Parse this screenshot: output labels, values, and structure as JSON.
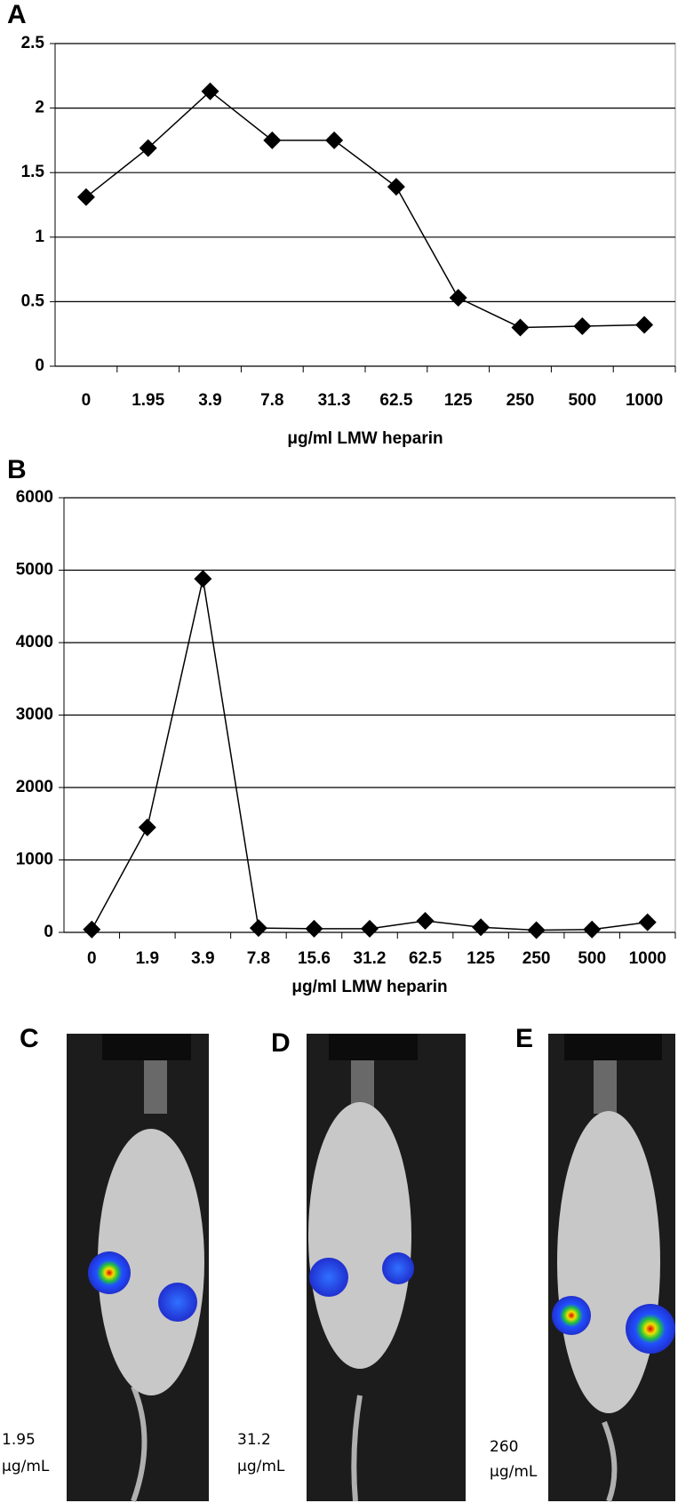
{
  "chart_data": [
    {
      "type": "line",
      "label": "A",
      "x_label": "μg/ml LMW heparin",
      "categories": [
        "0",
        "1.95",
        "3.9",
        "7.8",
        "31.3",
        "62.5",
        "125",
        "250",
        "500",
        "1000"
      ],
      "values": [
        1.31,
        1.69,
        2.13,
        1.75,
        1.75,
        1.39,
        0.53,
        0.3,
        0.31,
        0.32
      ],
      "color": "#000000",
      "ylim": [
        0,
        2.5
      ],
      "yticks": [
        0,
        0.5,
        1,
        1.5,
        2,
        2.5
      ],
      "grid": true
    },
    {
      "type": "line",
      "label": "B",
      "x_label": "μg/ml LMW heparin",
      "categories": [
        "0",
        "1.9",
        "3.9",
        "7.8",
        "15.6",
        "31.2",
        "62.5",
        "125",
        "250",
        "500",
        "1000"
      ],
      "values": [
        40,
        1450,
        4880,
        60,
        50,
        50,
        160,
        70,
        30,
        40,
        140
      ],
      "color": "#000000",
      "ylim": [
        0,
        6000
      ],
      "yticks": [
        0,
        1000,
        2000,
        3000,
        4000,
        5000,
        6000
      ],
      "grid": true
    }
  ],
  "photos": [
    {
      "label": "C",
      "caption": [
        "1.95",
        "µg/mL"
      ]
    },
    {
      "label": "D",
      "caption": [
        "31.2",
        "µg/mL"
      ]
    },
    {
      "label": "E",
      "caption": [
        "260",
        "µg/mL"
      ]
    }
  ]
}
